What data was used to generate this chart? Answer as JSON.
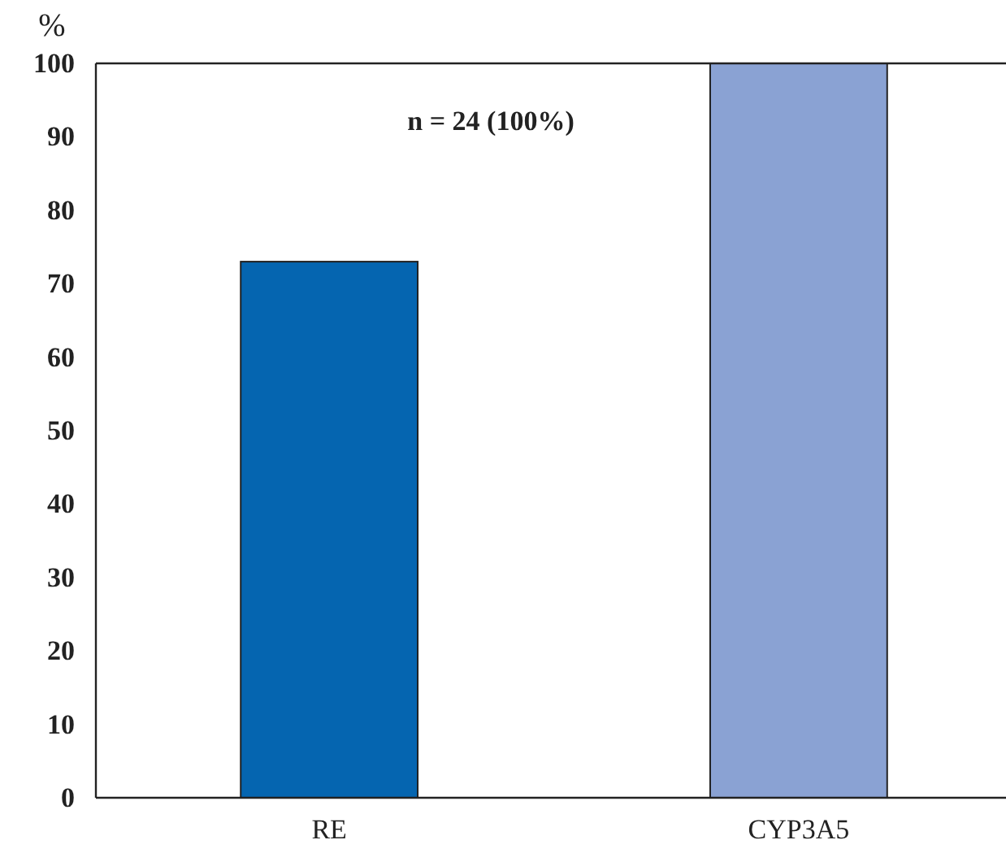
{
  "chart_data": {
    "type": "bar",
    "ylabel": "%",
    "categories": [
      "RE",
      "CYP3A5"
    ],
    "values": [
      73,
      100
    ],
    "colors": [
      "#0565b0",
      "#8aa2d3"
    ],
    "ylim": [
      0,
      100
    ],
    "yticks": [
      0,
      10,
      20,
      30,
      40,
      50,
      60,
      70,
      80,
      90,
      100
    ],
    "grid": false,
    "annotations": [
      "n = 24 (100%)"
    ]
  }
}
